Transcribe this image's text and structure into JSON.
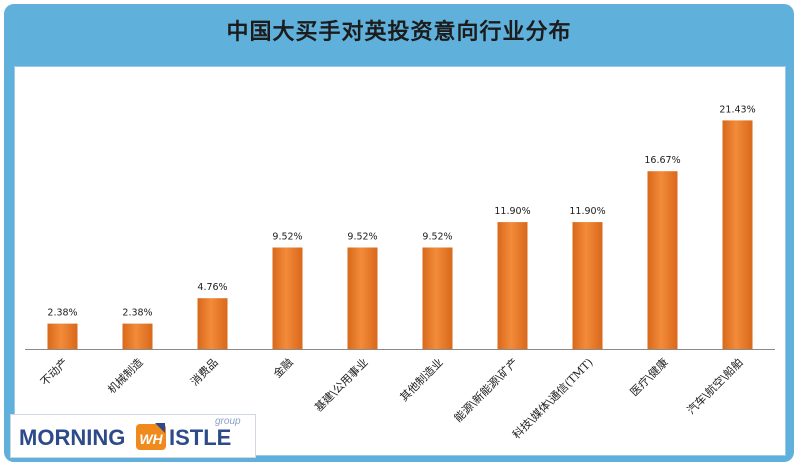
{
  "colors": {
    "frame": "#5fb0db",
    "bar": "#f28b3a",
    "bar_dark": "#d9681b",
    "text": "#1c1c1c",
    "logo_blue": "#2d4a8a",
    "logo_orange": "#f08a1c"
  },
  "logo": {
    "word1": "MORNING",
    "word2": "ISTLE",
    "mark_text": "WH",
    "tag": "group"
  },
  "chart_data": {
    "type": "bar",
    "title": "中国大买手对英投资意向行业分布",
    "categories": [
      "不动产",
      "机械制造",
      "消费品",
      "金融",
      "基建\\公用事业",
      "其他制造业",
      "能源\\新能源\\矿产",
      "科技\\媒体\\通信(TMT)",
      "医疗\\健康",
      "汽车\\航空\\船舶"
    ],
    "values": [
      2.38,
      2.38,
      4.76,
      9.52,
      9.52,
      9.52,
      11.9,
      11.9,
      16.67,
      21.43
    ],
    "value_labels": [
      "2.38%",
      "2.38%",
      "4.76%",
      "9.52%",
      "9.52%",
      "9.52%",
      "11.90%",
      "11.90%",
      "16.67%",
      "21.43%"
    ],
    "ylim": [
      0,
      22.5
    ],
    "grid": false,
    "legend": "none",
    "xlabel": "",
    "ylabel": ""
  }
}
